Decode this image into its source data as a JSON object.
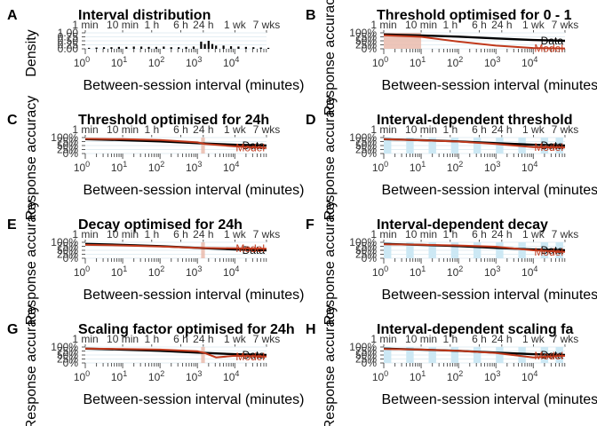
{
  "colors": {
    "data": "#000000",
    "model": "#c0391c",
    "band": "#cce8f4",
    "grid": "#e3eef3",
    "fill": "#e9b7a8"
  },
  "xaxis": {
    "label": "Between-session interval (minutes)",
    "ticks": [
      {
        "base": "10",
        "exp": "0"
      },
      {
        "base": "10",
        "exp": "1"
      },
      {
        "base": "10",
        "exp": "2"
      },
      {
        "base": "10",
        "exp": "3"
      },
      {
        "base": "10",
        "exp": "4"
      }
    ],
    "top_ticks": [
      {
        "label": "1 min",
        "minutes": 1
      },
      {
        "label": "10 min",
        "minutes": 10
      },
      {
        "label": "1 h",
        "minutes": 60
      },
      {
        "label": "6 h",
        "minutes": 360
      },
      {
        "label": "24 h",
        "minutes": 1440
      },
      {
        "label": "1 wk",
        "minutes": 10080
      },
      {
        "label": "7 wks",
        "minutes": 70560
      }
    ]
  },
  "chart_data": [
    {
      "letter": "A",
      "type": "bar",
      "title": "Interval distribution",
      "ylabel": "Density",
      "y_ticks": [
        "1.00",
        "0.75",
        "0.50",
        "0.25",
        "0.00"
      ],
      "ylim": [
        0,
        1
      ],
      "bins_log10": [
        0.1,
        0.3,
        0.5,
        0.7,
        0.9,
        1.1,
        1.3,
        1.5,
        1.7,
        1.9,
        2.1,
        2.3,
        2.5,
        2.7,
        2.9,
        3.1,
        3.2,
        3.3,
        3.4,
        3.5,
        3.7,
        3.9,
        4.1,
        4.3,
        4.5,
        4.7,
        4.9
      ],
      "values": [
        0.06,
        0.08,
        0.1,
        0.1,
        0.12,
        0.12,
        0.14,
        0.14,
        0.12,
        0.12,
        0.14,
        0.1,
        0.1,
        0.12,
        0.14,
        0.45,
        0.3,
        0.5,
        0.3,
        0.2,
        0.2,
        0.16,
        0.14,
        0.12,
        0.1,
        0.08,
        0.06
      ]
    },
    {
      "letter": "B",
      "type": "line",
      "title": "Threshold optimised for 0 - 1",
      "ylabel": "Response accuracy",
      "y_ticks": [
        "100%",
        "75%",
        "50%",
        "25%",
        "0%"
      ],
      "ylim": [
        0,
        1
      ],
      "highlight_log10": [
        0,
        1
      ],
      "series": [
        {
          "name": "Data",
          "x_log10": [
            0,
            1,
            2,
            3,
            4,
            4.85
          ],
          "y": [
            0.9,
            0.84,
            0.76,
            0.65,
            0.55,
            0.5
          ]
        },
        {
          "name": "Model",
          "x_log10": [
            0,
            1,
            2,
            3,
            4,
            4.85
          ],
          "y": [
            0.85,
            0.75,
            0.45,
            0.2,
            0.05,
            0.02
          ]
        }
      ]
    },
    {
      "letter": "C",
      "type": "line",
      "title": "Threshold optimised for 24h",
      "ylabel": "Response accuracy",
      "y_ticks": [
        "100%",
        "75%",
        "50%",
        "25%",
        "0%"
      ],
      "ylim": [
        0,
        1
      ],
      "highlight_log10": [
        3.1,
        3.2
      ],
      "series": [
        {
          "name": "Data",
          "x_log10": [
            0,
            1,
            2,
            3,
            4,
            4.85
          ],
          "y": [
            0.9,
            0.84,
            0.76,
            0.65,
            0.55,
            0.5
          ]
        },
        {
          "name": "Model",
          "x_log10": [
            0,
            1,
            2,
            3,
            3.2,
            4,
            4.85
          ],
          "y": [
            0.92,
            0.9,
            0.85,
            0.7,
            0.6,
            0.45,
            0.35
          ]
        }
      ]
    },
    {
      "letter": "D",
      "type": "line",
      "title": "Interval-dependent threshold",
      "ylabel": "Response accuracy",
      "y_ticks": [
        "100%",
        "75%",
        "50%",
        "25%",
        "0%"
      ],
      "ylim": [
        0,
        1
      ],
      "bands_log10": [
        [
          0,
          0.2
        ],
        [
          0.6,
          0.8
        ],
        [
          1.2,
          1.4
        ],
        [
          1.8,
          2.0
        ],
        [
          2.4,
          2.6
        ],
        [
          3.0,
          3.2
        ],
        [
          3.6,
          3.8
        ],
        [
          4.2,
          4.4
        ],
        [
          4.6,
          4.8
        ]
      ],
      "series": [
        {
          "name": "Data",
          "x_log10": [
            0,
            1,
            2,
            3,
            4,
            4.85
          ],
          "y": [
            0.9,
            0.84,
            0.76,
            0.65,
            0.55,
            0.5
          ]
        },
        {
          "name": "Model",
          "x_log10": [
            0,
            1,
            2,
            3,
            4,
            4.85
          ],
          "y": [
            0.9,
            0.83,
            0.75,
            0.6,
            0.4,
            0.38
          ]
        }
      ]
    },
    {
      "letter": "E",
      "type": "line",
      "title": "Decay optimised for 24h",
      "ylabel": "Response accuracy",
      "y_ticks": [
        "100%",
        "75%",
        "50%",
        "25%",
        "0%"
      ],
      "ylim": [
        0,
        1
      ],
      "highlight_log10": [
        3.1,
        3.2
      ],
      "series": [
        {
          "name": "Data",
          "x_log10": [
            0,
            1,
            2,
            3,
            4,
            4.85
          ],
          "y": [
            0.9,
            0.84,
            0.76,
            0.65,
            0.55,
            0.5
          ]
        },
        {
          "name": "Model",
          "x_log10": [
            0,
            1,
            2,
            3,
            4,
            4.85
          ],
          "y": [
            0.84,
            0.8,
            0.74,
            0.65,
            0.62,
            0.6
          ]
        }
      ]
    },
    {
      "letter": "F",
      "type": "line",
      "title": "Interval-dependent decay",
      "ylabel": "Response accuracy",
      "y_ticks": [
        "100%",
        "75%",
        "50%",
        "25%",
        "0%"
      ],
      "ylim": [
        0,
        1
      ],
      "bands_log10": [
        [
          0,
          0.2
        ],
        [
          0.6,
          0.8
        ],
        [
          1.2,
          1.4
        ],
        [
          1.8,
          2.0
        ],
        [
          2.4,
          2.6
        ],
        [
          3.0,
          3.2
        ],
        [
          3.6,
          3.8
        ],
        [
          4.2,
          4.4
        ],
        [
          4.6,
          4.8
        ]
      ],
      "series": [
        {
          "name": "Data",
          "x_log10": [
            0,
            1,
            2,
            3,
            4,
            4.85
          ],
          "y": [
            0.9,
            0.84,
            0.76,
            0.65,
            0.55,
            0.5
          ]
        },
        {
          "name": "Model",
          "x_log10": [
            0,
            1,
            2,
            3,
            4,
            4.85
          ],
          "y": [
            0.88,
            0.85,
            0.8,
            0.72,
            0.5,
            0.4
          ]
        }
      ]
    },
    {
      "letter": "G",
      "type": "line",
      "title": "Scaling factor optimised for 24h",
      "ylabel": "Response accuracy",
      "y_ticks": [
        "100%",
        "75%",
        "50%",
        "25%",
        "0%"
      ],
      "ylim": [
        0,
        1
      ],
      "highlight_log10": [
        3.1,
        3.2
      ],
      "series": [
        {
          "name": "Data",
          "x_log10": [
            0,
            1,
            2,
            3,
            4,
            4.85
          ],
          "y": [
            0.9,
            0.84,
            0.76,
            0.65,
            0.55,
            0.5
          ]
        },
        {
          "name": "Model",
          "x_log10": [
            0,
            1,
            2,
            3,
            3.2,
            3.5,
            4,
            4.85
          ],
          "y": [
            0.9,
            0.88,
            0.84,
            0.74,
            0.62,
            0.35,
            0.45,
            0.4
          ]
        }
      ]
    },
    {
      "letter": "H",
      "type": "line",
      "title": "Interval-dependent scaling fa",
      "ylabel": "Response accuracy",
      "y_ticks": [
        "100%",
        "75%",
        "50%",
        "25%",
        "0%"
      ],
      "ylim": [
        0,
        1
      ],
      "bands_log10": [
        [
          0,
          0.2
        ],
        [
          0.6,
          0.8
        ],
        [
          1.2,
          1.4
        ],
        [
          1.8,
          2.0
        ],
        [
          2.4,
          2.6
        ],
        [
          3.0,
          3.2
        ],
        [
          3.6,
          3.8
        ],
        [
          4.2,
          4.4
        ],
        [
          4.6,
          4.8
        ]
      ],
      "series": [
        {
          "name": "Data",
          "x_log10": [
            0,
            1,
            2,
            3,
            4,
            4.85
          ],
          "y": [
            0.9,
            0.84,
            0.76,
            0.65,
            0.55,
            0.5
          ]
        },
        {
          "name": "Model",
          "x_log10": [
            0,
            1,
            2,
            3,
            4,
            4.85
          ],
          "y": [
            0.88,
            0.84,
            0.76,
            0.62,
            0.35,
            0.45
          ]
        }
      ]
    }
  ]
}
